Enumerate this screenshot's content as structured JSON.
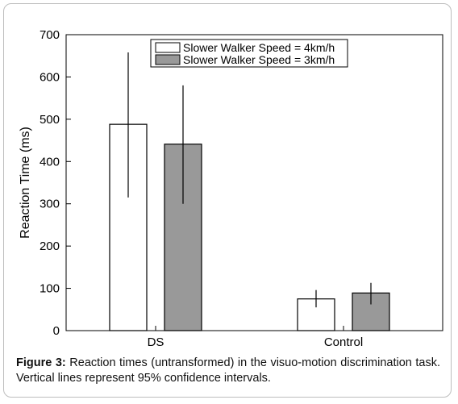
{
  "chart_data": {
    "type": "bar",
    "title": "",
    "xlabel": "",
    "ylabel": "Reaction Time (ms)",
    "ylim": [
      0,
      700
    ],
    "yticks": [
      0,
      100,
      200,
      300,
      400,
      500,
      600,
      700
    ],
    "categories": [
      "DS",
      "Control"
    ],
    "legend_position": "top-right",
    "grid": false,
    "series": [
      {
        "name": "Slower Walker Speed = 4km/h",
        "color": "#ffffff",
        "values": [
          488,
          75
        ],
        "ci_low": [
          315,
          55
        ],
        "ci_high": [
          658,
          96
        ]
      },
      {
        "name": "Slower Walker Speed = 3km/h",
        "color": "#999999",
        "values": [
          441,
          89
        ],
        "ci_low": [
          300,
          62
        ],
        "ci_high": [
          580,
          113
        ]
      }
    ]
  },
  "caption": {
    "label": "Figure 3:",
    "text": " Reaction times (untransformed) in the visuo-motion discrimination task. Vertical lines represent 95% confidence intervals."
  }
}
